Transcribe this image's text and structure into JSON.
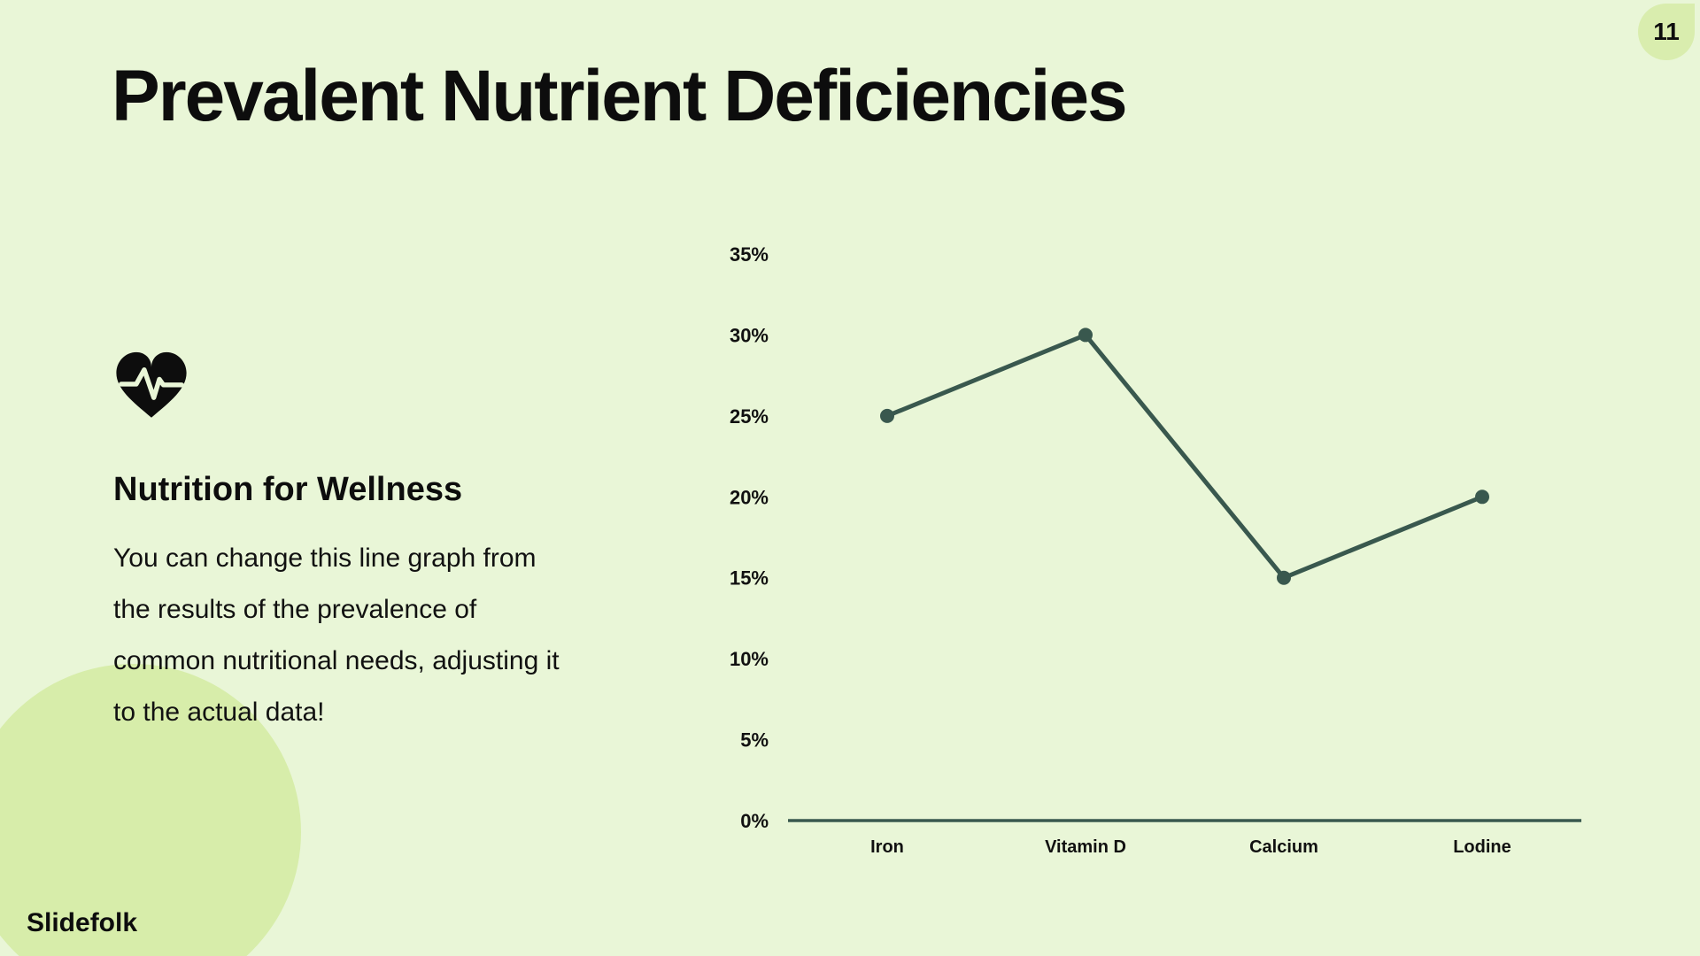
{
  "page": {
    "title": "Prevalent Nutrient Deficiencies",
    "page_number": "11",
    "brand": "Slidefolk"
  },
  "text_block": {
    "icon": "heartbeat-heart-icon",
    "heading": "Nutrition for Wellness",
    "body_lines": [
      "You can change this line graph from",
      "the results of the prevalence of",
      "common nutritional needs, adjusting it",
      "to the actual data!"
    ]
  },
  "chart_data": {
    "type": "line",
    "title": "",
    "categories": [
      "Iron",
      "Vitamin D",
      "Calcium",
      "Lodine"
    ],
    "values": [
      25,
      30,
      15,
      20
    ],
    "unit": "%",
    "ylim": [
      0,
      35
    ],
    "y_tick_step": 5,
    "y_tick_labels": [
      "0%",
      "5%",
      "10%",
      "15%",
      "20%",
      "25%",
      "30%",
      "35%"
    ],
    "grid": false,
    "legend": "none",
    "line_color": "#39584e",
    "point_color": "#39584e",
    "axis_color": "#39584e",
    "label_color": "#111111"
  },
  "colors": {
    "background": "#e9f6d7",
    "decoration": "#d7edaa",
    "badge": "#d9edae",
    "text": "#0d0d0d"
  }
}
